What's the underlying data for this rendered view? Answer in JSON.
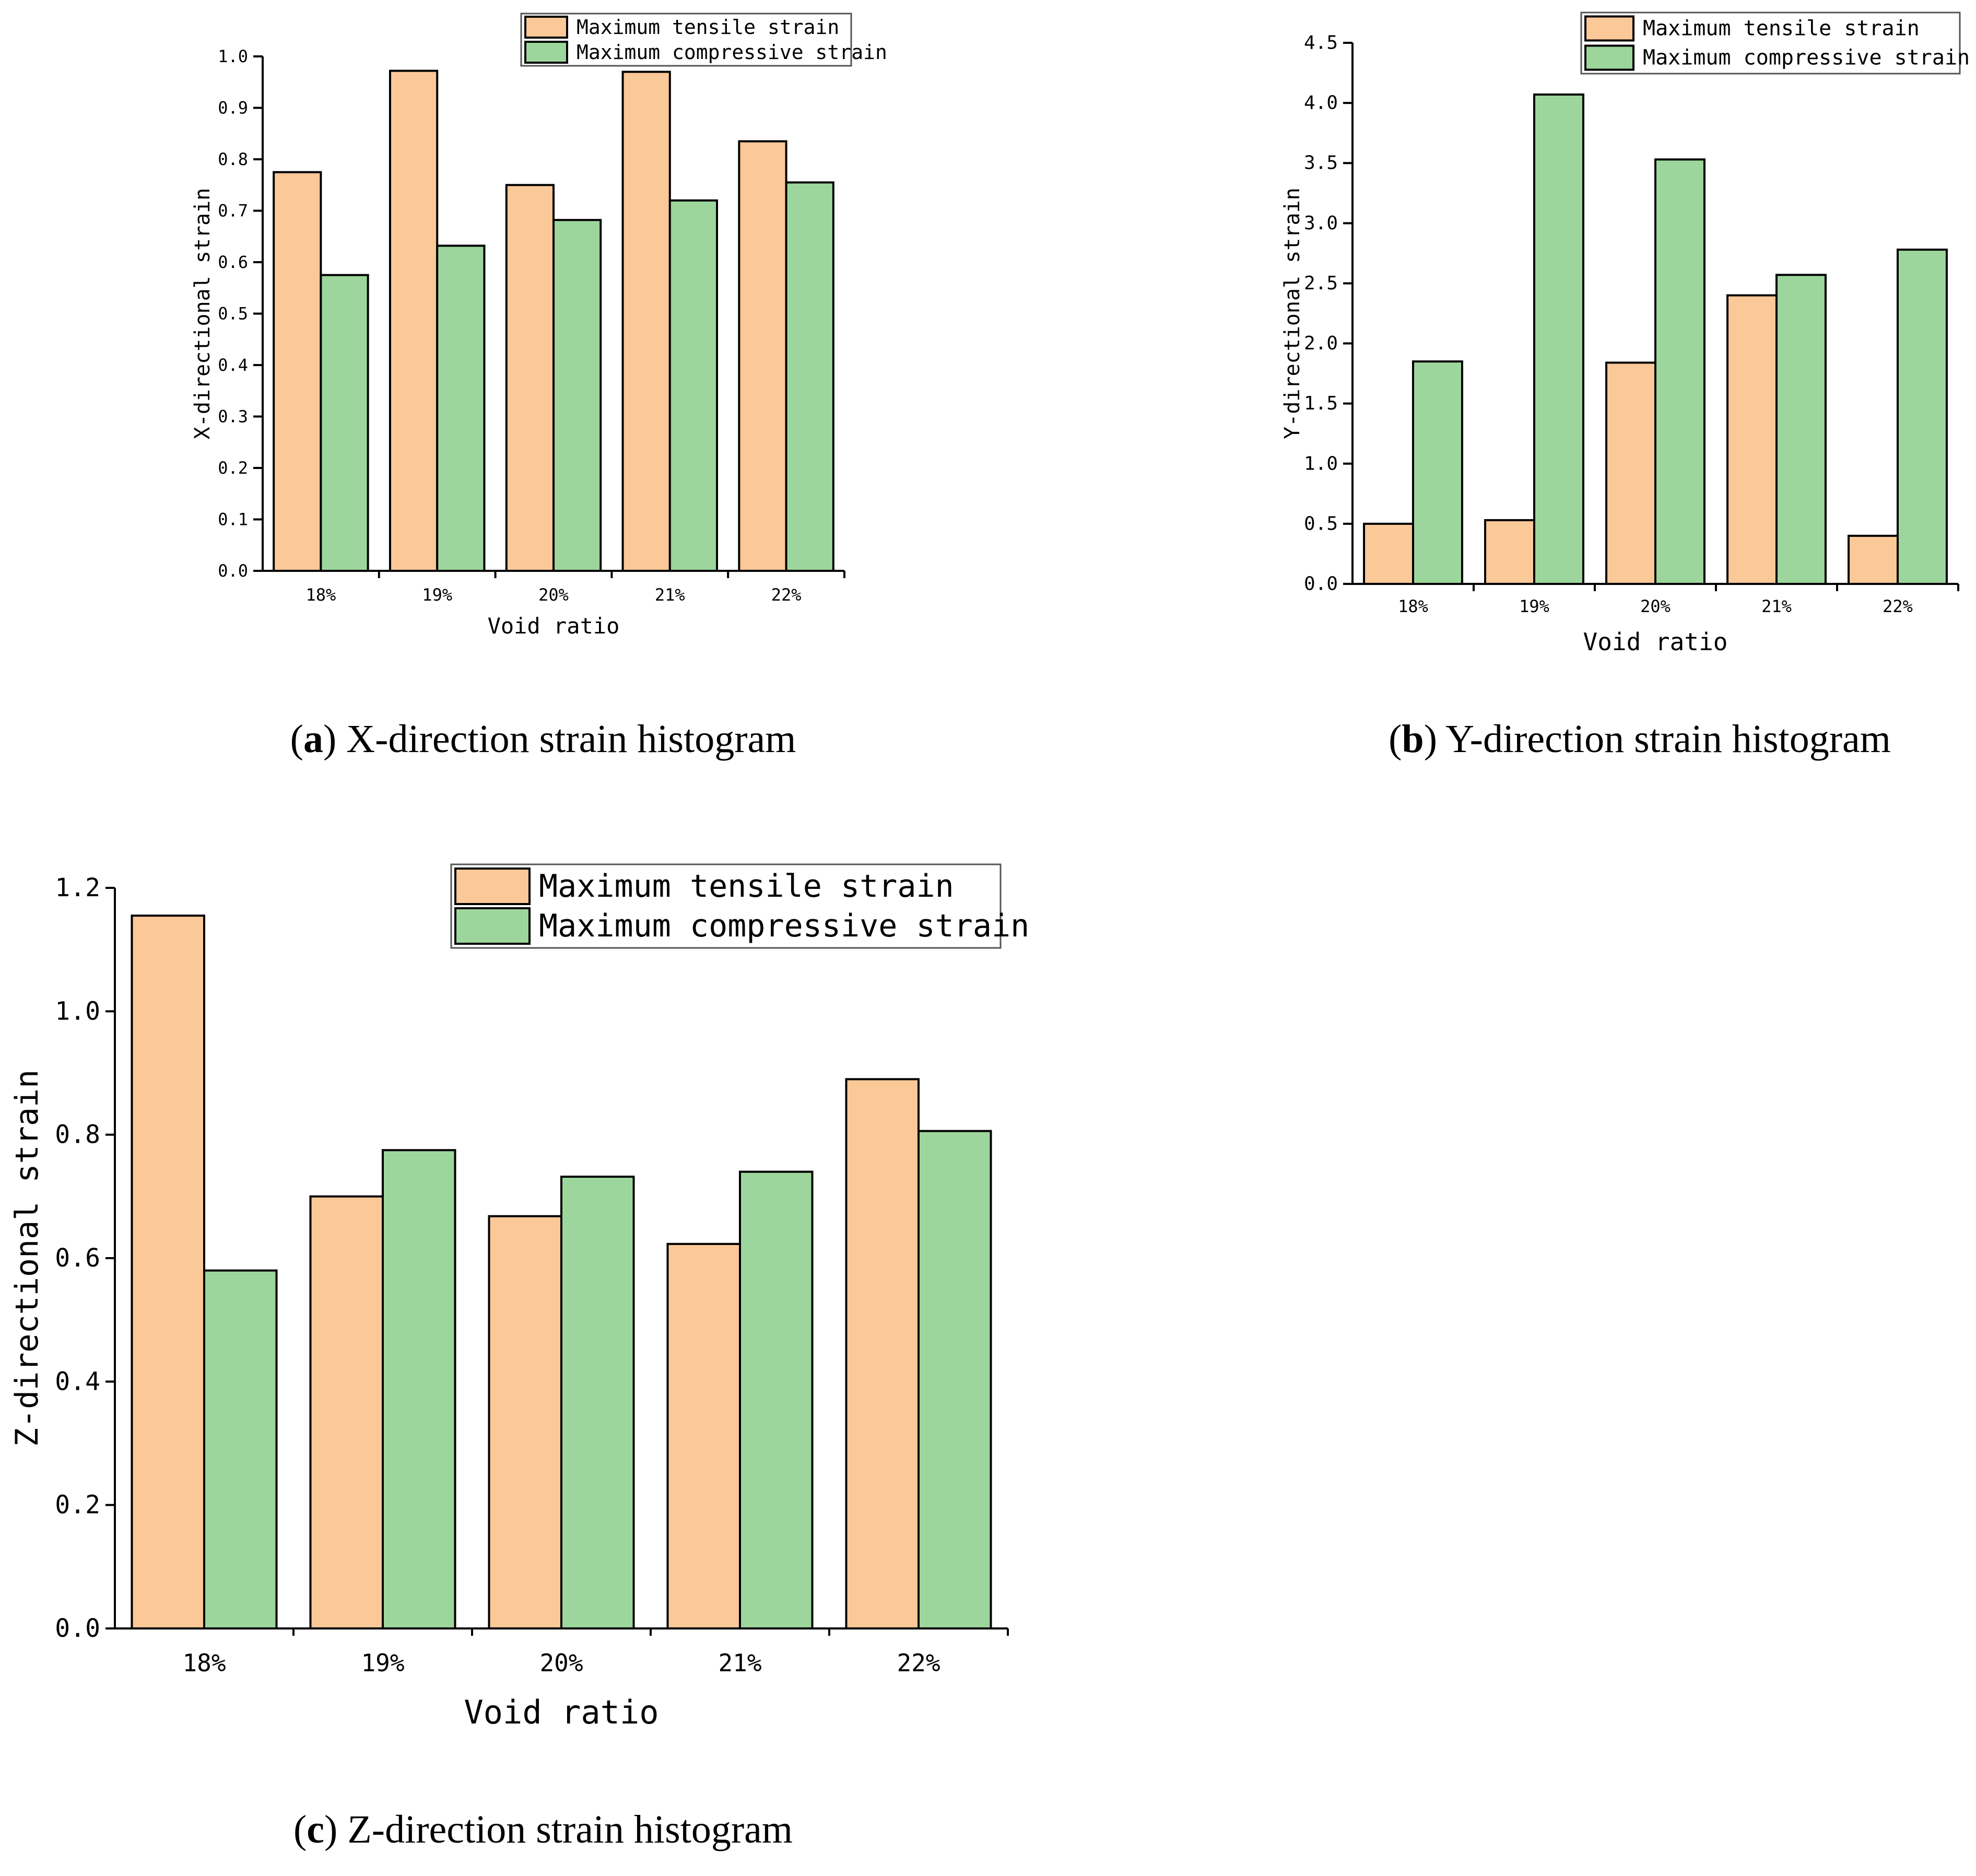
{
  "colors": {
    "tensile": "#FBC898",
    "compressive": "#9DD69C",
    "axis": "#000000"
  },
  "chart_data": [
    {
      "id": "a",
      "type": "bar",
      "categories": [
        "18%",
        "19%",
        "20%",
        "21%",
        "22%"
      ],
      "series": [
        {
          "name": "Maximum tensile strain",
          "values": [
            0.775,
            0.972,
            0.75,
            0.97,
            0.835
          ]
        },
        {
          "name": "Maximum compressive strain",
          "values": [
            0.575,
            0.632,
            0.682,
            0.72,
            0.755
          ]
        }
      ],
      "xlabel": "Void ratio",
      "ylabel": "X-directional strain",
      "ylim": [
        0,
        1.0
      ],
      "yticks": [
        "0.0",
        "0.1",
        "0.2",
        "0.3",
        "0.4",
        "0.5",
        "0.6",
        "0.7",
        "0.8",
        "0.9",
        "1.0"
      ],
      "legend": "top-right",
      "caption_label": "a",
      "caption_text": " X-direction strain histogram"
    },
    {
      "id": "b",
      "type": "bar",
      "categories": [
        "18%",
        "19%",
        "20%",
        "21%",
        "22%"
      ],
      "series": [
        {
          "name": "Maximum tensile strain",
          "values": [
            0.5,
            0.53,
            1.84,
            2.4,
            0.4
          ]
        },
        {
          "name": "Maximum compressive strain",
          "values": [
            1.85,
            4.07,
            3.53,
            2.57,
            2.78
          ]
        }
      ],
      "xlabel": "Void ratio",
      "ylabel": "Y-directional strain",
      "ylim": [
        0,
        4.5
      ],
      "yticks": [
        "0.0",
        "0.5",
        "1.0",
        "1.5",
        "2.0",
        "2.5",
        "3.0",
        "3.5",
        "4.0",
        "4.5"
      ],
      "legend": "top-right",
      "caption_label": "b",
      "caption_text": " Y-direction strain histogram"
    },
    {
      "id": "c",
      "type": "bar",
      "categories": [
        "18%",
        "19%",
        "20%",
        "21%",
        "22%"
      ],
      "series": [
        {
          "name": "Maximum tensile strain",
          "values": [
            1.155,
            0.7,
            0.668,
            0.623,
            0.89
          ]
        },
        {
          "name": "Maximum compressive strain",
          "values": [
            0.58,
            0.775,
            0.732,
            0.74,
            0.806
          ]
        }
      ],
      "xlabel": "Void ratio",
      "ylabel": "Z-directional strain",
      "ylim": [
        0,
        1.2
      ],
      "yticks": [
        "0.0",
        "0.2",
        "0.4",
        "0.6",
        "0.8",
        "1.0",
        "1.2"
      ],
      "legend": "top-right",
      "caption_label": "c",
      "caption_text": " Z-direction strain histogram"
    }
  ]
}
